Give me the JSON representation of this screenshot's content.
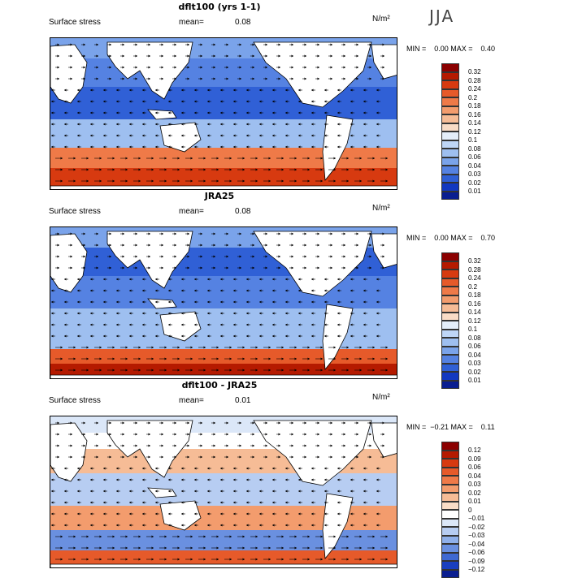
{
  "season": "JJA",
  "panels": [
    {
      "title": "dflt100 (yrs 1-1)",
      "subtitle": "Surface stress",
      "mean_label": "mean=",
      "mean_value": "0.08",
      "units": "N/m²",
      "minmax": "MIN =    0.00 MAX =    0.40",
      "colorbar": {
        "labels": [
          "0.32",
          "0.28",
          "0.24",
          "0.2",
          "0.18",
          "0.16",
          "0.14",
          "0.12",
          "0.1",
          "0.08",
          "0.06",
          "0.04",
          "0.03",
          "0.02",
          "0.01"
        ],
        "colors": [
          "#8b0000",
          "#b51a00",
          "#d73a10",
          "#e65a2a",
          "#ef7a48",
          "#f39c6d",
          "#f6bc96",
          "#f9dcc6",
          "#e4eefa",
          "#bfd6f6",
          "#9ebff0",
          "#7aa3ea",
          "#5582e2",
          "#3060d6",
          "#1238c0",
          "#0a1e90"
        ]
      },
      "map_style": "model"
    },
    {
      "title": "JRA25",
      "subtitle": "Surface stress",
      "mean_label": "mean=",
      "mean_value": "0.08",
      "units": "N/m²",
      "minmax": "MIN =    0.00 MAX =    0.70",
      "colorbar": {
        "labels": [
          "0.32",
          "0.28",
          "0.24",
          "0.2",
          "0.18",
          "0.16",
          "0.14",
          "0.12",
          "0.1",
          "0.08",
          "0.06",
          "0.04",
          "0.03",
          "0.02",
          "0.01"
        ],
        "colors": [
          "#8b0000",
          "#b51a00",
          "#d73a10",
          "#e65a2a",
          "#ef7a48",
          "#f39c6d",
          "#f6bc96",
          "#f9dcc6",
          "#e4eefa",
          "#bfd6f6",
          "#9ebff0",
          "#7aa3ea",
          "#5582e2",
          "#3060d6",
          "#1238c0",
          "#0a1e90"
        ]
      },
      "map_style": "reanalysis"
    },
    {
      "title": "dflt100 - JRA25",
      "subtitle": "Surface stress",
      "mean_label": "mean=",
      "mean_value": "0.01",
      "units": "N/m²",
      "minmax": "MIN =  −0.21 MAX =    0.11",
      "colorbar": {
        "labels": [
          "0.12",
          "0.09",
          "0.06",
          "0.04",
          "0.03",
          "0.02",
          "0.01",
          "0",
          "−0.01",
          "−0.02",
          "−0.03",
          "−0.04",
          "−0.06",
          "−0.09",
          "−0.12"
        ],
        "colors": [
          "#8b0000",
          "#b51a00",
          "#d73a10",
          "#e65a2a",
          "#ef7a48",
          "#f39c6d",
          "#f6bc96",
          "#f9dcc6",
          "#ffffff",
          "#dbe7f8",
          "#b7cdf2",
          "#8fb0ea",
          "#6a90e0",
          "#3f69d2",
          "#1a3fbf",
          "#0a1e90"
        ]
      },
      "map_style": "difference"
    }
  ]
}
